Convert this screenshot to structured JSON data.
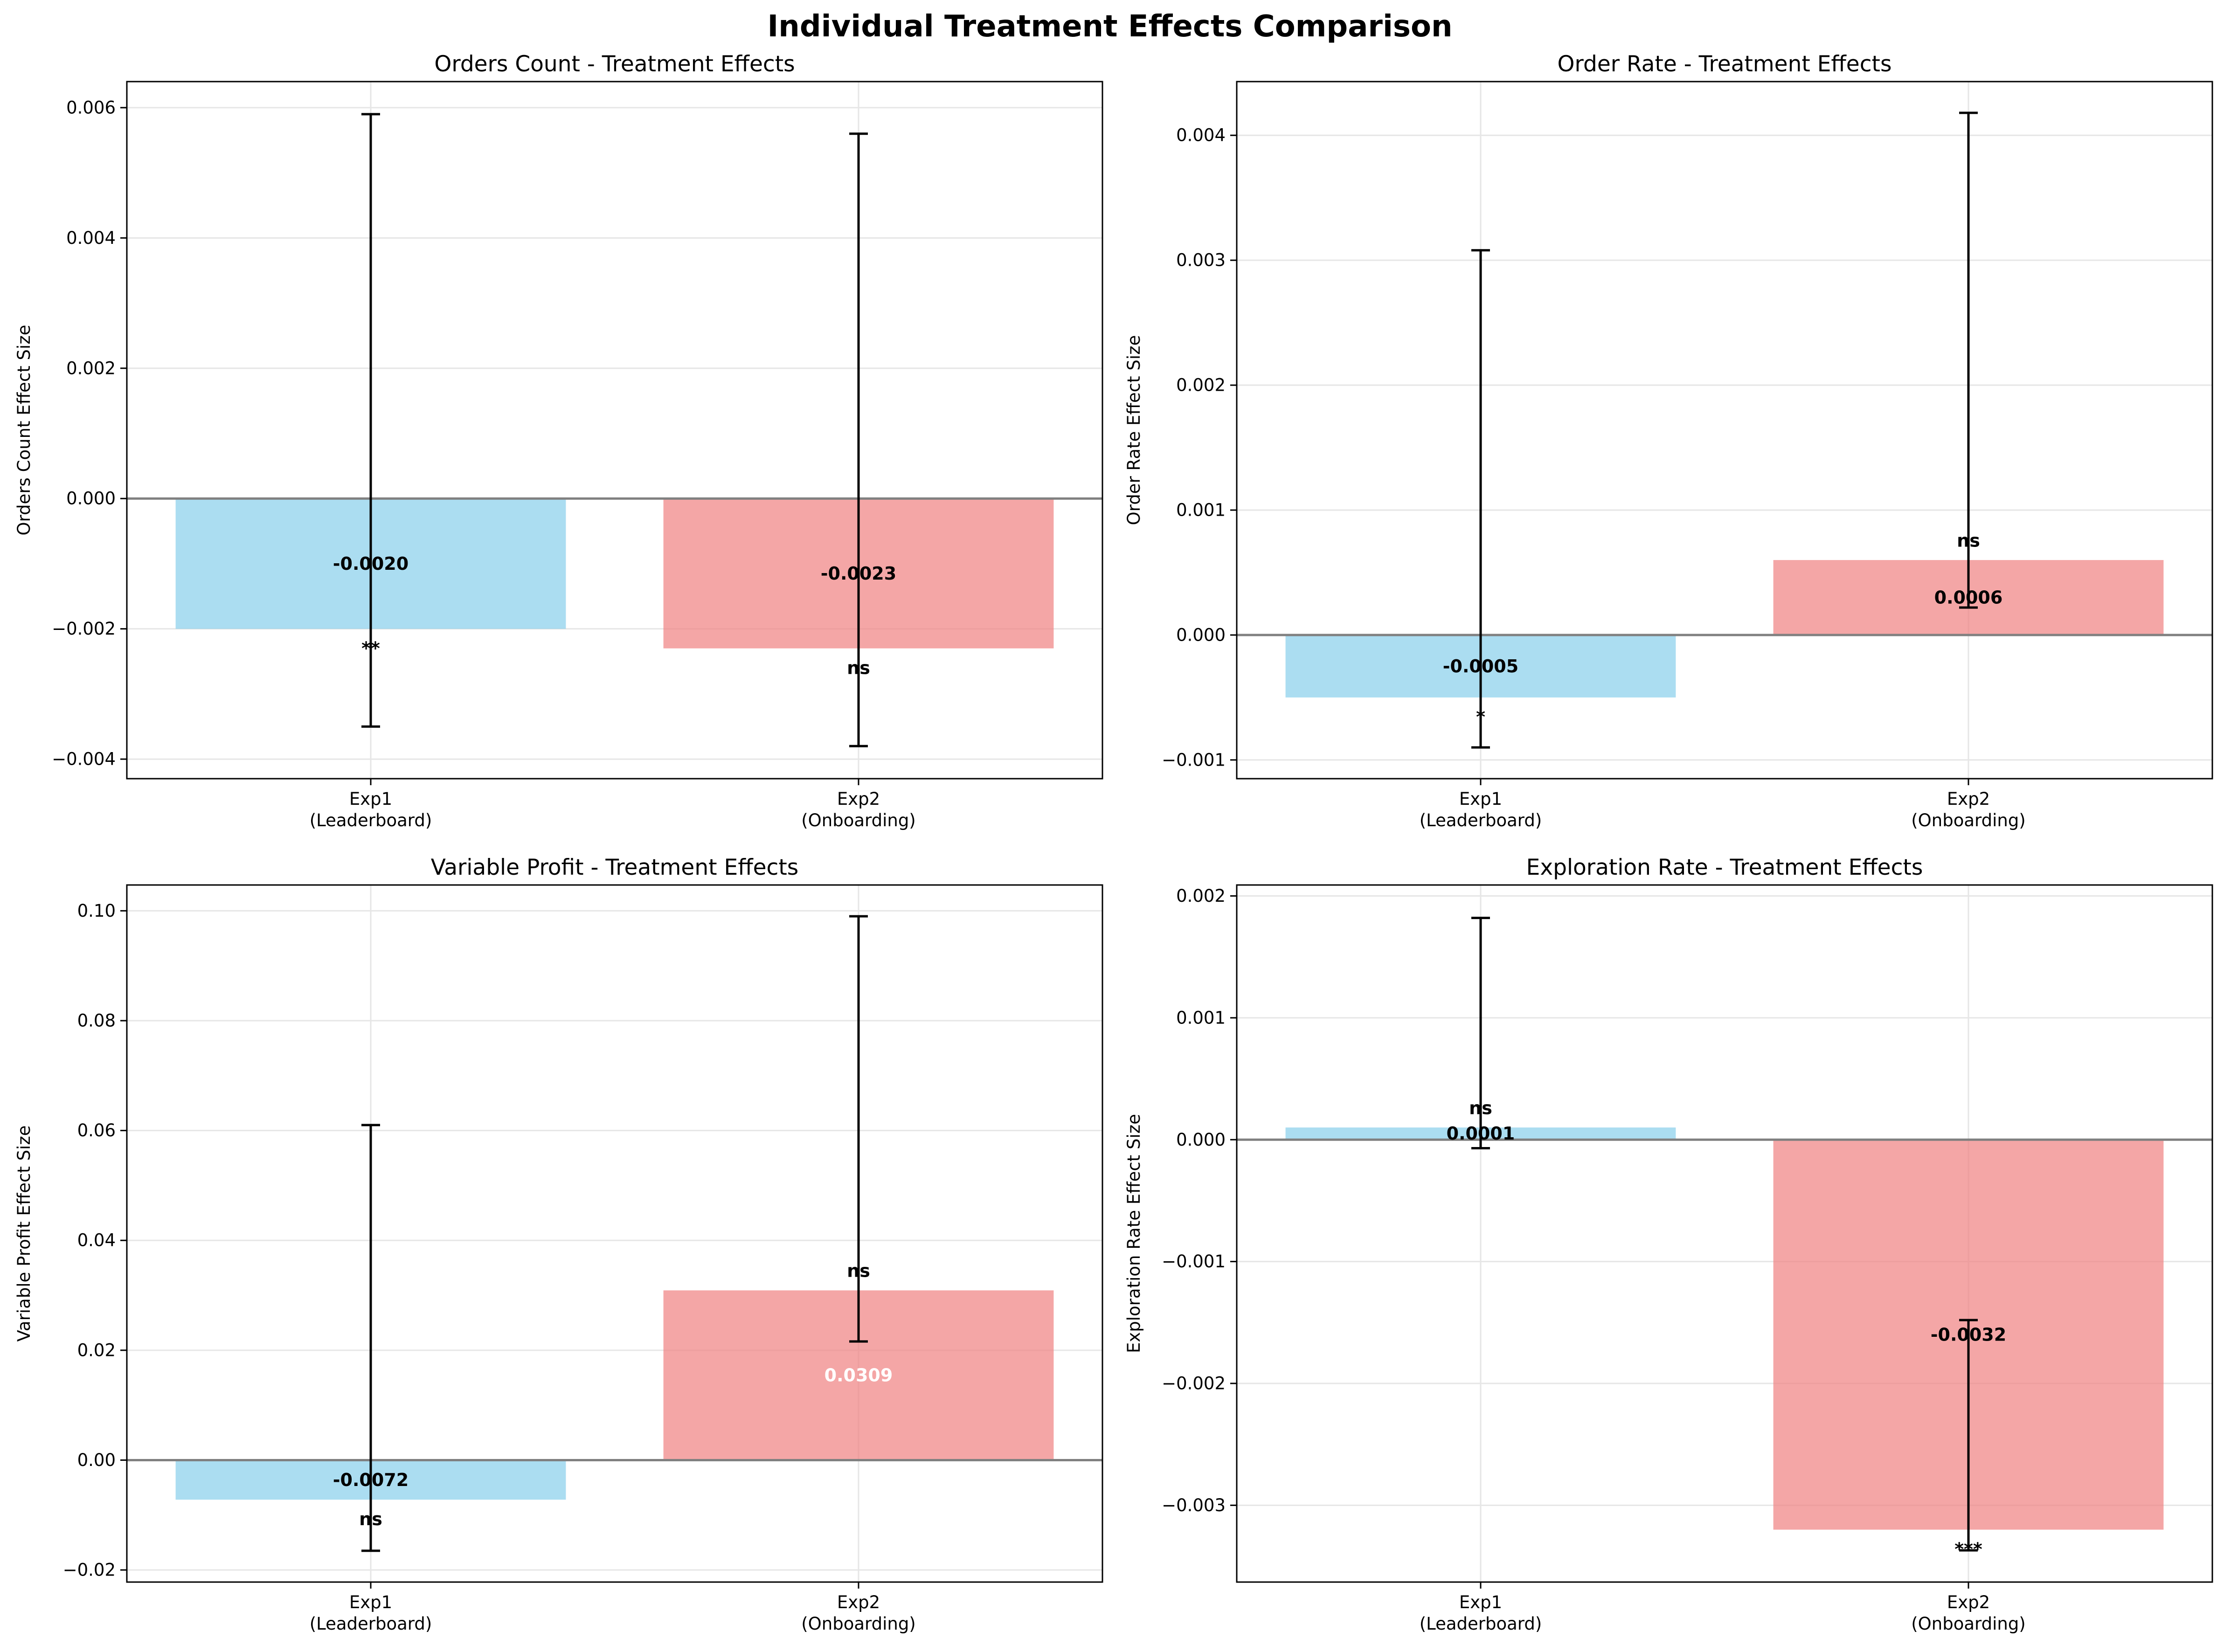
{
  "figure": {
    "title": "Individual Treatment Effects Comparison"
  },
  "colors": {
    "exp1_bar": "#87ceeb",
    "exp2_bar": "#f08080",
    "bar_opacity": 0.7,
    "zero_line": "#808080",
    "grid": "#e6e6e6",
    "label_on_dark": "#ffffff"
  },
  "chart_data": [
    {
      "type": "bar",
      "title": "Orders Count - Treatment Effects",
      "ylabel": "Orders Count Effect Size",
      "categories": [
        "Exp1\n(Leaderboard)",
        "Exp2\n(Onboarding)"
      ],
      "values": [
        -0.002,
        -0.0023
      ],
      "value_labels": [
        "-0.0020",
        "-0.0023"
      ],
      "value_label_colors": [
        "#000000",
        "#000000"
      ],
      "error_low": [
        -0.0035,
        -0.0038
      ],
      "error_high": [
        0.0059,
        0.0056
      ],
      "significance": [
        "**",
        "ns"
      ],
      "ylim": [
        -0.0043,
        0.0064
      ],
      "yticks": [
        -0.004,
        -0.002,
        0.0,
        0.002,
        0.004,
        0.006
      ],
      "ytick_labels": [
        "−0.004",
        "−0.002",
        "0.000",
        "0.002",
        "0.004",
        "0.006"
      ],
      "grid": true
    },
    {
      "type": "bar",
      "title": "Order Rate - Treatment Effects",
      "ylabel": "Order Rate Effect Size",
      "categories": [
        "Exp1\n(Leaderboard)",
        "Exp2\n(Onboarding)"
      ],
      "values": [
        -0.0005,
        0.0006
      ],
      "value_labels": [
        "-0.0005",
        "0.0006"
      ],
      "value_label_colors": [
        "#000000",
        "#000000"
      ],
      "error_low": [
        -0.0009,
        0.00022
      ],
      "error_high": [
        0.00308,
        0.00418
      ],
      "significance": [
        "*",
        "ns"
      ],
      "ylim": [
        -0.00115,
        0.00443
      ],
      "yticks": [
        -0.001,
        0.0,
        0.001,
        0.002,
        0.003,
        0.004
      ],
      "ytick_labels": [
        "−0.001",
        "0.000",
        "0.001",
        "0.002",
        "0.003",
        "0.004"
      ],
      "grid": true
    },
    {
      "type": "bar",
      "title": "Variable Profit - Treatment Effects",
      "ylabel": "Variable Profit Effect Size",
      "categories": [
        "Exp1\n(Leaderboard)",
        "Exp2\n(Onboarding)"
      ],
      "values": [
        -0.0072,
        0.0309
      ],
      "value_labels": [
        "-0.0072",
        "0.0309"
      ],
      "value_label_colors": [
        "#000000",
        "#ffffff"
      ],
      "error_low": [
        -0.0165,
        0.0216
      ],
      "error_high": [
        0.061,
        0.099
      ],
      "significance": [
        "ns",
        "ns"
      ],
      "ylim": [
        -0.0222,
        0.1047
      ],
      "yticks": [
        -0.02,
        0.0,
        0.02,
        0.04,
        0.06,
        0.08,
        0.1
      ],
      "ytick_labels": [
        "−0.02",
        "0.00",
        "0.02",
        "0.04",
        "0.06",
        "0.08",
        "0.10"
      ],
      "grid": true
    },
    {
      "type": "bar",
      "title": "Exploration Rate - Treatment Effects",
      "ylabel": "Exploration Rate Effect Size",
      "categories": [
        "Exp1\n(Leaderboard)",
        "Exp2\n(Onboarding)"
      ],
      "values": [
        0.0001,
        -0.0032
      ],
      "value_labels": [
        "0.0001",
        "-0.0032"
      ],
      "value_label_colors": [
        "#000000",
        "#000000"
      ],
      "error_low": [
        -7e-05,
        -0.00337
      ],
      "error_high": [
        0.00182,
        -0.00148
      ],
      "significance": [
        "ns",
        "***"
      ],
      "ylim": [
        -0.00363,
        0.00209
      ],
      "yticks": [
        -0.003,
        -0.002,
        -0.001,
        0.0,
        0.001,
        0.002
      ],
      "ytick_labels": [
        "−0.003",
        "−0.002",
        "−0.001",
        "0.000",
        "0.001",
        "0.002"
      ],
      "grid": true
    }
  ]
}
